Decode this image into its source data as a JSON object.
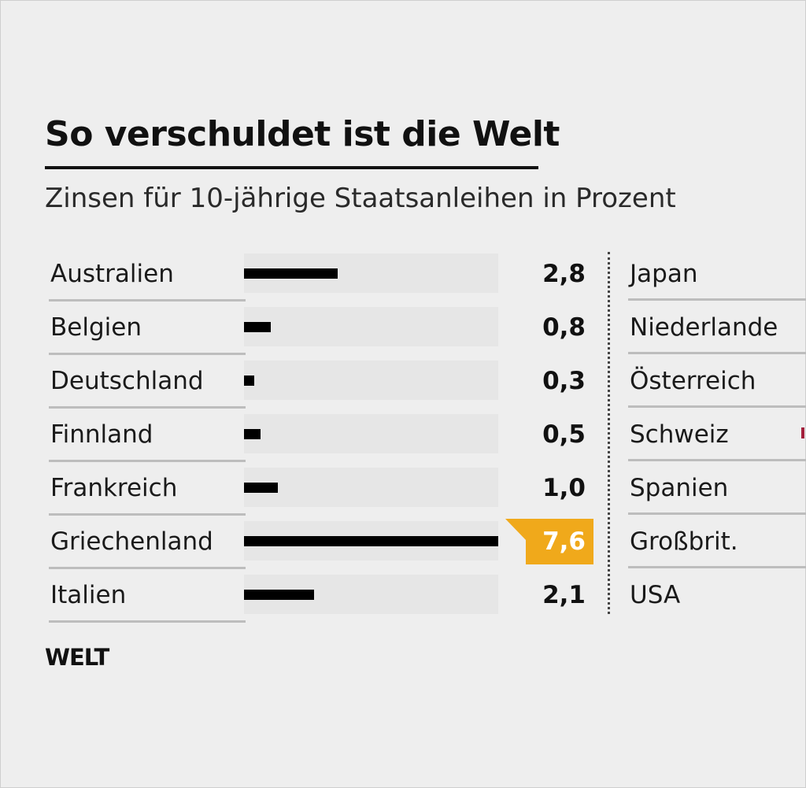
{
  "chart_data": {
    "type": "bar",
    "title": "So verschuldet ist die Welt",
    "subtitle": "Zinsen für 10-jährige Staatsanleihen in Prozent",
    "categories": [
      "Australien",
      "Belgien",
      "Deutschland",
      "Finnland",
      "Frankreich",
      "Griechenland",
      "Italien"
    ],
    "values": [
      2.8,
      0.8,
      0.3,
      0.5,
      1.0,
      7.6,
      2.1
    ],
    "value_labels": [
      "2,8",
      "0,8",
      "0,3",
      "0,5",
      "1,0",
      "7,6",
      "2,1"
    ],
    "highlight_index": 5,
    "highlight_color": "#f0a91b",
    "bar_color": "#000000",
    "xlim": [
      0,
      7.6
    ],
    "grid": false,
    "right_column_categories": [
      "Japan",
      "Niederlande",
      "Österreich",
      "Schweiz",
      "Spanien",
      "Großbrit.",
      "USA"
    ]
  },
  "logo": "WELT"
}
